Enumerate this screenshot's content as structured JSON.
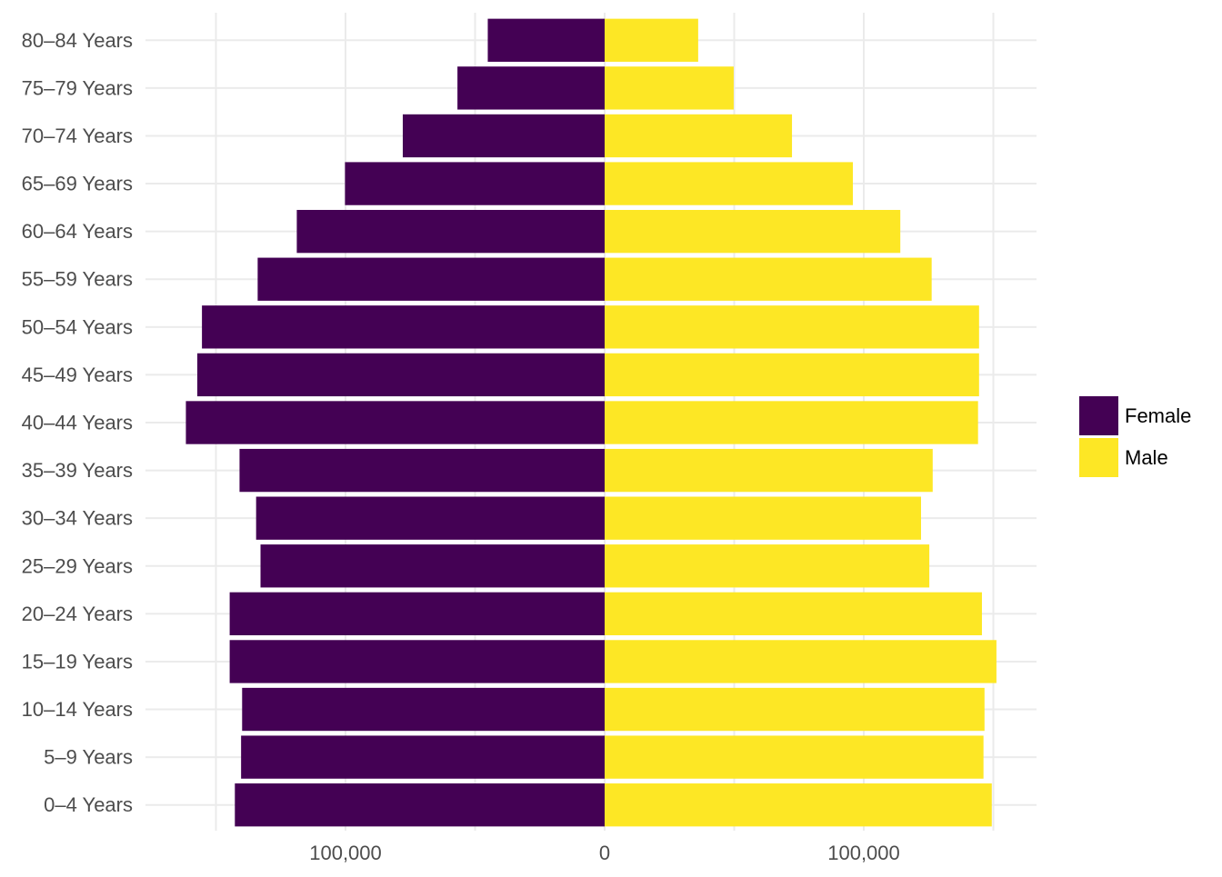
{
  "chart_data": {
    "type": "bar",
    "orientation": "horizontal",
    "layout": "diverging-population-pyramid",
    "title": "",
    "xlabel": "",
    "ylabel": "",
    "categories": [
      "0–4 Years",
      "5–9 Years",
      "10–14 Years",
      "15–19 Years",
      "20–24 Years",
      "25–29 Years",
      "30–34 Years",
      "35–39 Years",
      "40–44 Years",
      "45–49 Years",
      "50–54 Years",
      "55–59 Years",
      "60–64 Years",
      "65–69 Years",
      "70–74 Years",
      "75–79 Years",
      "80–84 Years"
    ],
    "series": [
      {
        "name": "Female",
        "color": "#440154",
        "side": "left",
        "values": [
          142700,
          140300,
          139900,
          144700,
          144700,
          132800,
          134500,
          140900,
          161600,
          157200,
          155400,
          133900,
          118800,
          100200,
          77900,
          56800,
          45100
        ]
      },
      {
        "name": "Male",
        "color": "#FDE725",
        "side": "right",
        "values": [
          149400,
          146200,
          146600,
          151200,
          145600,
          125300,
          122100,
          126600,
          144100,
          144500,
          144500,
          126200,
          114100,
          95800,
          72300,
          49800,
          36100
        ]
      }
    ],
    "xlim": [
      -178000,
      167000
    ],
    "x_ticks": [
      {
        "value": -100000,
        "label": "100,000"
      },
      {
        "value": 0,
        "label": "0"
      },
      {
        "value": 100000,
        "label": "100,000"
      }
    ],
    "x_minor_gridlines": [
      -150000,
      -50000,
      50000,
      150000
    ],
    "grid": true,
    "legend": {
      "position": "right",
      "entries": [
        "Female",
        "Male"
      ]
    }
  }
}
